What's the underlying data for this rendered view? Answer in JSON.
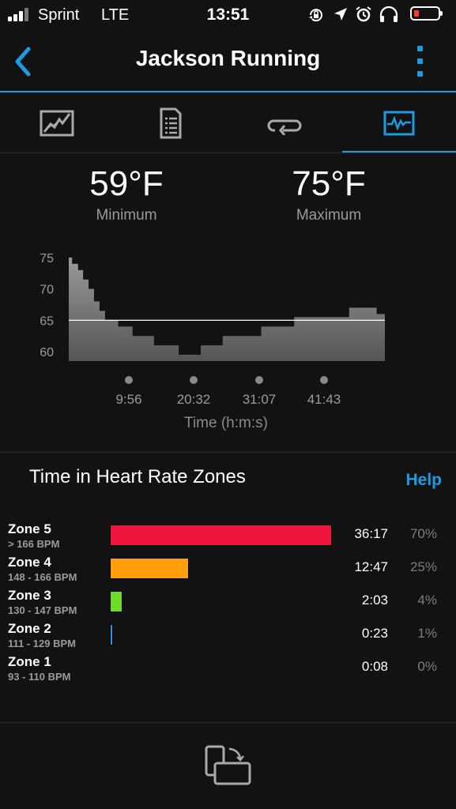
{
  "status_bar": {
    "carrier": "Sprint",
    "network": "LTE",
    "time": "13:51",
    "icons": [
      "signal-icon",
      "lock-rotation-icon",
      "location-arrow-icon",
      "alarm-icon",
      "headphones-icon",
      "battery-icon"
    ],
    "battery_color": "#ff3b30"
  },
  "nav": {
    "title": "Jackson Running",
    "accent_color": "#1e9be0"
  },
  "tabs": [
    {
      "icon": "map-icon",
      "active": false
    },
    {
      "icon": "details-document-icon",
      "active": false
    },
    {
      "icon": "laps-loop-icon",
      "active": false
    },
    {
      "icon": "charts-icon",
      "active": true
    }
  ],
  "temperature": {
    "min_value": "59°F",
    "min_label": "Minimum",
    "max_value": "75°F",
    "max_label": "Maximum"
  },
  "chart_data": {
    "type": "area",
    "xlabel": "Time (h:m:s)",
    "x_ticks": [
      "9:56",
      "20:32",
      "31:07",
      "41:43"
    ],
    "y_ticks": [
      75,
      70,
      65,
      60
    ],
    "ylim": [
      58.5,
      75.5
    ],
    "reference_line": 65,
    "x": [
      0,
      0.6,
      1.7,
      2.6,
      3.6,
      4.6,
      5.6,
      6.6,
      9.0,
      11.6,
      15.5,
      20.0,
      24.0,
      28.0,
      35.0,
      41.0,
      51.0,
      56.0
    ],
    "values": [
      75,
      74,
      73,
      71.5,
      70,
      68,
      66.5,
      65,
      64,
      62.5,
      61,
      59.5,
      61,
      62.5,
      64,
      65.5,
      67,
      66
    ]
  },
  "hr_zones": {
    "title": "Time in Heart Rate Zones",
    "help_label": "Help",
    "zones": [
      {
        "name": "Zone 5",
        "range": "> 166 BPM",
        "time": "36:17",
        "percent": "70%",
        "fraction": 0.7,
        "color": "#f0143c"
      },
      {
        "name": "Zone 4",
        "range": "148 - 166 BPM",
        "time": "12:47",
        "percent": "25%",
        "fraction": 0.25,
        "color": "#ff9f0a"
      },
      {
        "name": "Zone 3",
        "range": "130 - 147 BPM",
        "time": "2:03",
        "percent": "4%",
        "fraction": 0.04,
        "color": "#6cdc29"
      },
      {
        "name": "Zone 2",
        "range": "111 - 129 BPM",
        "time": "0:23",
        "percent": "1%",
        "fraction": 0.01,
        "color": "#1e9be0"
      },
      {
        "name": "Zone 1",
        "range": "93 - 110 BPM",
        "time": "0:08",
        "percent": "0%",
        "fraction": 0.0,
        "color": "#9a9a9a"
      }
    ]
  },
  "footer": {
    "icon": "rotate-device-icon"
  }
}
